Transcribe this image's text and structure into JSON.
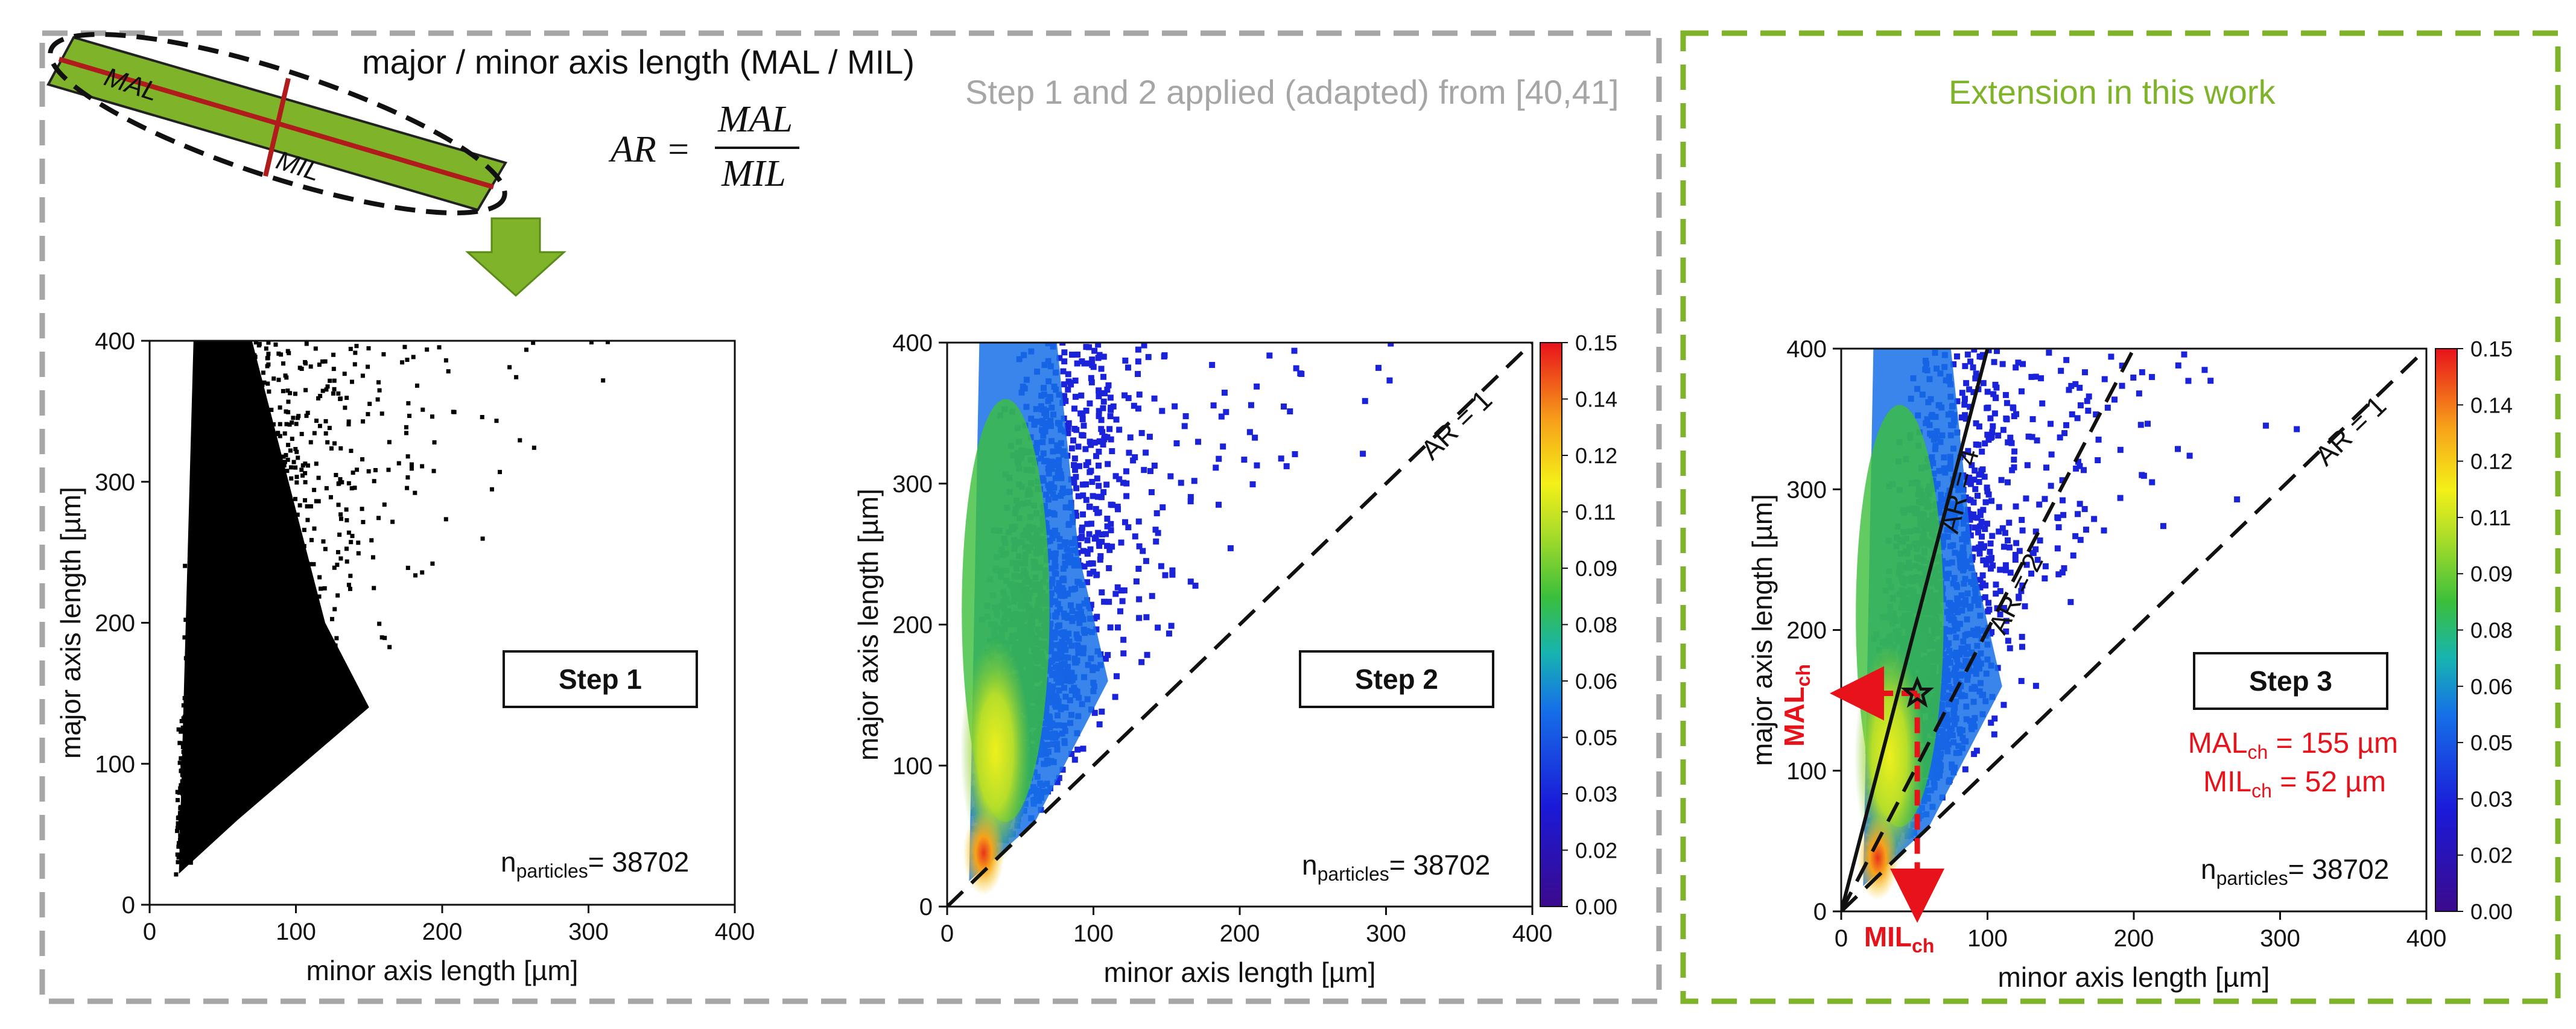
{
  "colors": {
    "grey_frame": "#a6a6a6",
    "green_frame": "#7fb32a",
    "particle_fill": "#7fb32a",
    "axis_line": "#b01c1c",
    "highlight": "#e8121b",
    "scatter_black": "#000000"
  },
  "header": {
    "axis_label": "major / minor axis length (MAL / MIL)",
    "ar_lhs": "AR =",
    "ar_num": "MAL",
    "ar_den": "MIL",
    "diagram_mal": "MAL",
    "diagram_mil": "MIL",
    "grey_caption": "Step 1 and 2 applied (adapted) from [40,41]",
    "green_caption": "Extension in this work"
  },
  "chart_data": [
    {
      "type": "scatter",
      "id": "step1",
      "step_label": "Step 1",
      "n_label": "n",
      "n_sub": "particles",
      "n_value": "= 38702",
      "xlabel": "minor axis length [µm]",
      "ylabel": "major axis length [µm]",
      "xlim": [
        0,
        400
      ],
      "ylim": [
        0,
        400
      ],
      "xticks": [
        "0",
        "100",
        "200",
        "300",
        "400"
      ],
      "yticks": [
        "0",
        "100",
        "200",
        "300",
        "400"
      ],
      "marker_color": "black",
      "colorbar": false,
      "reference_lines": []
    },
    {
      "type": "heatmap",
      "id": "step2",
      "step_label": "Step 2",
      "n_label": "n",
      "n_sub": "particles",
      "n_value": "= 38702",
      "xlabel": "minor axis length [µm]",
      "ylabel": "major axis length [µm]",
      "xlim": [
        0,
        400
      ],
      "ylim": [
        0,
        400
      ],
      "xticks": [
        "0",
        "100",
        "200",
        "300",
        "400"
      ],
      "yticks": [
        "0",
        "100",
        "200",
        "300",
        "400"
      ],
      "colorbar": true,
      "colorbar_range": [
        0,
        0.15
      ],
      "colorbar_ticks": [
        "0.15",
        "0.14",
        "0.12",
        "0.11",
        "0.09",
        "0.08",
        "0.06",
        "0.05",
        "0.03",
        "0.02",
        "0.00"
      ],
      "reference_lines": [
        {
          "label": "AR = 1",
          "slope": 1,
          "style": "dashed",
          "label_x": 320
        }
      ]
    },
    {
      "type": "heatmap",
      "id": "step3",
      "step_label": "Step 3",
      "n_label": "n",
      "n_sub": "particles",
      "n_value": "= 38702",
      "xlabel": "minor axis length [µm]",
      "ylabel": "major axis length [µm]",
      "xlim": [
        0,
        400
      ],
      "ylim": [
        0,
        400
      ],
      "xticks": [
        "0",
        "100",
        "200",
        "300",
        "400"
      ],
      "yticks": [
        "0",
        "100",
        "200",
        "300",
        "400"
      ],
      "colorbar": true,
      "colorbar_range": [
        0,
        0.15
      ],
      "colorbar_ticks": [
        "0.15",
        "0.14",
        "0.12",
        "0.11",
        "0.09",
        "0.08",
        "0.06",
        "0.05",
        "0.03",
        "0.02",
        "0.00"
      ],
      "reference_lines": [
        {
          "label": "AR = 1",
          "slope": 1,
          "style": "dashed",
          "label_x": 320
        },
        {
          "label": "AR = 2",
          "slope": 2,
          "style": "dashed",
          "label_x": 100
        },
        {
          "label": "AR = 4",
          "slope": 4,
          "style": "solid",
          "label_x": 68
        }
      ],
      "characteristic_point": {
        "x": 52,
        "y": 155
      },
      "mal_ch_label": "MAL",
      "mil_ch_label": "MIL",
      "ch_sub": "ch",
      "mal_ch_text": "= 155 µm",
      "mil_ch_text": "= 52 µm"
    }
  ]
}
